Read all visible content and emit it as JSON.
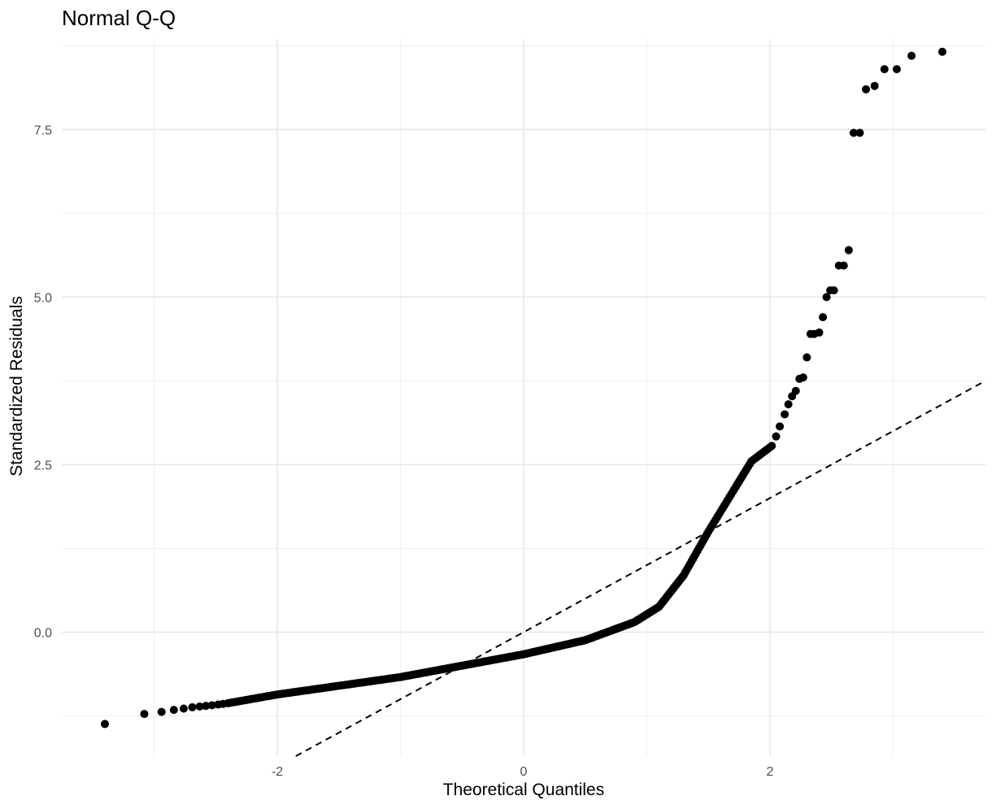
{
  "chart_data": {
    "type": "scatter",
    "title": "Normal Q-Q",
    "xlabel": "Theoretical Quantiles",
    "ylabel": "Standardized Residuals",
    "xlim": [
      -3.75,
      3.75
    ],
    "ylim": [
      -1.85,
      8.85
    ],
    "x_ticks": [
      -2,
      0,
      2
    ],
    "x_tick_labels": [
      "-2",
      "0",
      "2"
    ],
    "y_ticks": [
      0.0,
      2.5,
      5.0,
      7.5
    ],
    "y_tick_labels": [
      "0.0",
      "2.5",
      "5.0",
      "7.5"
    ],
    "x_minor_ticks": [
      -3,
      -1,
      1,
      3
    ],
    "y_minor_ticks": [
      -1.25,
      1.25,
      3.75,
      6.25,
      8.75
    ],
    "grid": true,
    "reference_line": {
      "slope": 1.0,
      "intercept": 0.0,
      "style": "dashed"
    },
    "points": [
      {
        "x": -3.4,
        "y": -1.37
      },
      {
        "x": -3.08,
        "y": -1.22
      },
      {
        "x": -2.94,
        "y": -1.19
      },
      {
        "x": -2.84,
        "y": -1.16
      },
      {
        "x": -2.76,
        "y": -1.14
      },
      {
        "x": -2.69,
        "y": -1.12
      },
      {
        "x": -2.63,
        "y": -1.11
      },
      {
        "x": -2.58,
        "y": -1.1
      },
      {
        "x": -2.53,
        "y": -1.09
      },
      {
        "x": -2.48,
        "y": -1.08
      },
      {
        "x": -2.44,
        "y": -1.07
      }
    ],
    "segments": [
      {
        "from": [
          -2.4,
          -1.06
        ],
        "to": [
          -2.0,
          -0.93
        ],
        "n": 26
      },
      {
        "from": [
          -2.0,
          -0.93
        ],
        "to": [
          -1.0,
          -0.67
        ],
        "n": 55
      },
      {
        "from": [
          -1.0,
          -0.67
        ],
        "to": [
          0.0,
          -0.33
        ],
        "n": 70
      },
      {
        "from": [
          0.0,
          -0.33
        ],
        "to": [
          0.5,
          -0.12
        ],
        "n": 40
      },
      {
        "from": [
          0.5,
          -0.12
        ],
        "to": [
          0.9,
          0.15
        ],
        "n": 35
      },
      {
        "from": [
          0.9,
          0.15
        ],
        "to": [
          1.1,
          0.38
        ],
        "n": 22
      },
      {
        "from": [
          1.1,
          0.38
        ],
        "to": [
          1.3,
          0.85
        ],
        "n": 20
      },
      {
        "from": [
          1.3,
          0.85
        ],
        "to": [
          1.5,
          1.5
        ],
        "n": 16
      },
      {
        "from": [
          1.5,
          1.5
        ],
        "to": [
          1.7,
          2.1
        ],
        "n": 14
      },
      {
        "from": [
          1.7,
          2.1
        ],
        "to": [
          1.85,
          2.55
        ],
        "n": 12
      },
      {
        "from": [
          1.85,
          2.55
        ],
        "to": [
          2.03,
          2.8
        ],
        "n": 12
      }
    ],
    "tail_points": [
      {
        "x": 2.05,
        "y": 2.92
      },
      {
        "x": 2.08,
        "y": 3.07
      },
      {
        "x": 2.12,
        "y": 3.25
      },
      {
        "x": 2.15,
        "y": 3.4
      },
      {
        "x": 2.18,
        "y": 3.52
      },
      {
        "x": 2.21,
        "y": 3.6
      },
      {
        "x": 2.24,
        "y": 3.78
      },
      {
        "x": 2.27,
        "y": 3.8
      },
      {
        "x": 2.3,
        "y": 4.1
      },
      {
        "x": 2.33,
        "y": 4.45
      },
      {
        "x": 2.36,
        "y": 4.45
      },
      {
        "x": 2.4,
        "y": 4.47
      },
      {
        "x": 2.43,
        "y": 4.7
      },
      {
        "x": 2.46,
        "y": 5.0
      },
      {
        "x": 2.49,
        "y": 5.1
      },
      {
        "x": 2.52,
        "y": 5.1
      },
      {
        "x": 2.56,
        "y": 5.47
      },
      {
        "x": 2.6,
        "y": 5.47
      },
      {
        "x": 2.64,
        "y": 5.7
      },
      {
        "x": 2.68,
        "y": 7.45
      },
      {
        "x": 2.73,
        "y": 7.45
      },
      {
        "x": 2.78,
        "y": 8.1
      },
      {
        "x": 2.85,
        "y": 8.15
      },
      {
        "x": 2.93,
        "y": 8.4
      },
      {
        "x": 3.03,
        "y": 8.4
      },
      {
        "x": 3.15,
        "y": 8.6
      },
      {
        "x": 3.4,
        "y": 8.66
      }
    ]
  }
}
